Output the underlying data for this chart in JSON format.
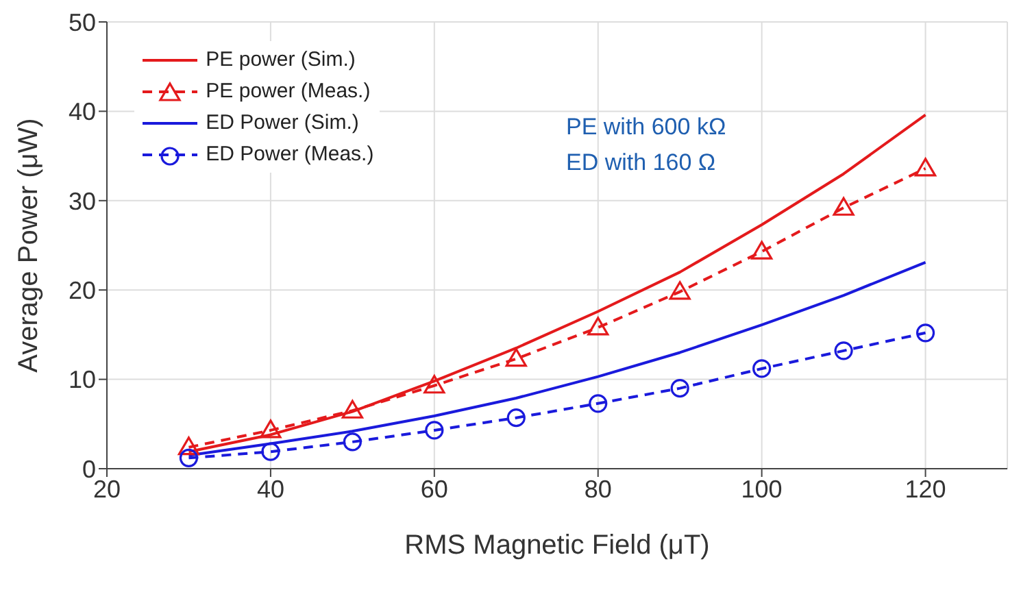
{
  "chart_data": {
    "type": "line",
    "xlabel": "RMS Magnetic Field (μT)",
    "ylabel": "Average Power (μW)",
    "x": [
      30,
      40,
      50,
      60,
      70,
      80,
      90,
      100,
      110,
      120
    ],
    "xlim": [
      20,
      130
    ],
    "xticks": [
      20,
      40,
      60,
      80,
      100,
      120
    ],
    "ylim": [
      0,
      50
    ],
    "yticks": [
      0,
      10,
      20,
      30,
      40,
      50
    ],
    "grid": true,
    "legend": "top left",
    "annotations": [
      "PE with 600 kΩ",
      "ED with 160 Ω"
    ],
    "series": [
      {
        "name": "PE power  (Sim.)",
        "color": "#e41a1c",
        "line_style": "solid",
        "marker": "none",
        "values": [
          1.9,
          3.8,
          6.4,
          9.8,
          13.5,
          17.6,
          22,
          27.3,
          33,
          39.6
        ]
      },
      {
        "name": "PE power  (Meas.)",
        "color": "#e41a1c",
        "line_style": "dashed",
        "marker": "triangle",
        "values": [
          2.4,
          4.3,
          6.5,
          9.3,
          12.3,
          15.8,
          19.8,
          24.3,
          29.2,
          33.6
        ]
      },
      {
        "name": "ED Power  (Sim.)",
        "color": "#1a1adc",
        "line_style": "solid",
        "marker": "none",
        "values": [
          1.5,
          2.8,
          4.2,
          5.9,
          7.9,
          10.3,
          13,
          16.1,
          19.4,
          23.1
        ]
      },
      {
        "name": "ED Power  (Meas.)",
        "color": "#1a1adc",
        "line_style": "dashed",
        "marker": "circle",
        "values": [
          1.2,
          1.9,
          3.0,
          4.3,
          5.7,
          7.3,
          9.0,
          11.2,
          13.2,
          15.2
        ]
      }
    ]
  }
}
